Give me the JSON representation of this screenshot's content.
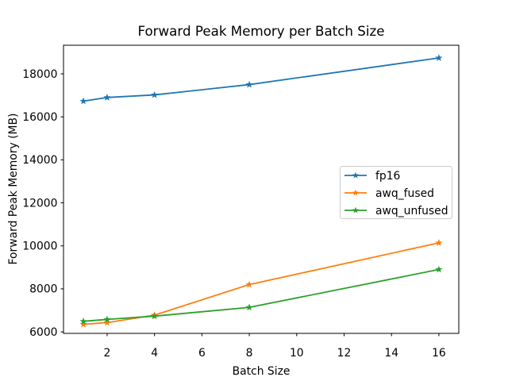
{
  "chart_data": {
    "type": "line",
    "title": "Forward Peak Memory per Batch Size",
    "xlabel": "Batch Size",
    "ylabel": "Forward Peak Memory (MB)",
    "x": [
      1,
      2,
      4,
      8,
      16
    ],
    "series": [
      {
        "name": "fp16",
        "color": "#1f77b4",
        "values": [
          16730,
          16900,
          17020,
          17500,
          18740
        ]
      },
      {
        "name": "awq_fused",
        "color": "#ff7f0e",
        "values": [
          6350,
          6430,
          6780,
          8200,
          10140
        ]
      },
      {
        "name": "awq_unfused",
        "color": "#2ca02c",
        "values": [
          6490,
          6580,
          6730,
          7140,
          8900
        ]
      }
    ],
    "marker": "star",
    "xticks": [
      2,
      4,
      6,
      8,
      10,
      12,
      14,
      16
    ],
    "yticks": [
      6000,
      8000,
      10000,
      12000,
      14000,
      16000,
      18000
    ],
    "xlim": [
      0.16,
      16.84
    ],
    "ylim": [
      5930,
      19330
    ],
    "grid": false,
    "legend": {
      "position": "center-right",
      "entries": [
        "fp16",
        "awq_fused",
        "awq_unfused"
      ],
      "border_color": "#cccccc",
      "background": "#ffffff"
    },
    "spine_color": "#000000",
    "background": "#ffffff"
  }
}
